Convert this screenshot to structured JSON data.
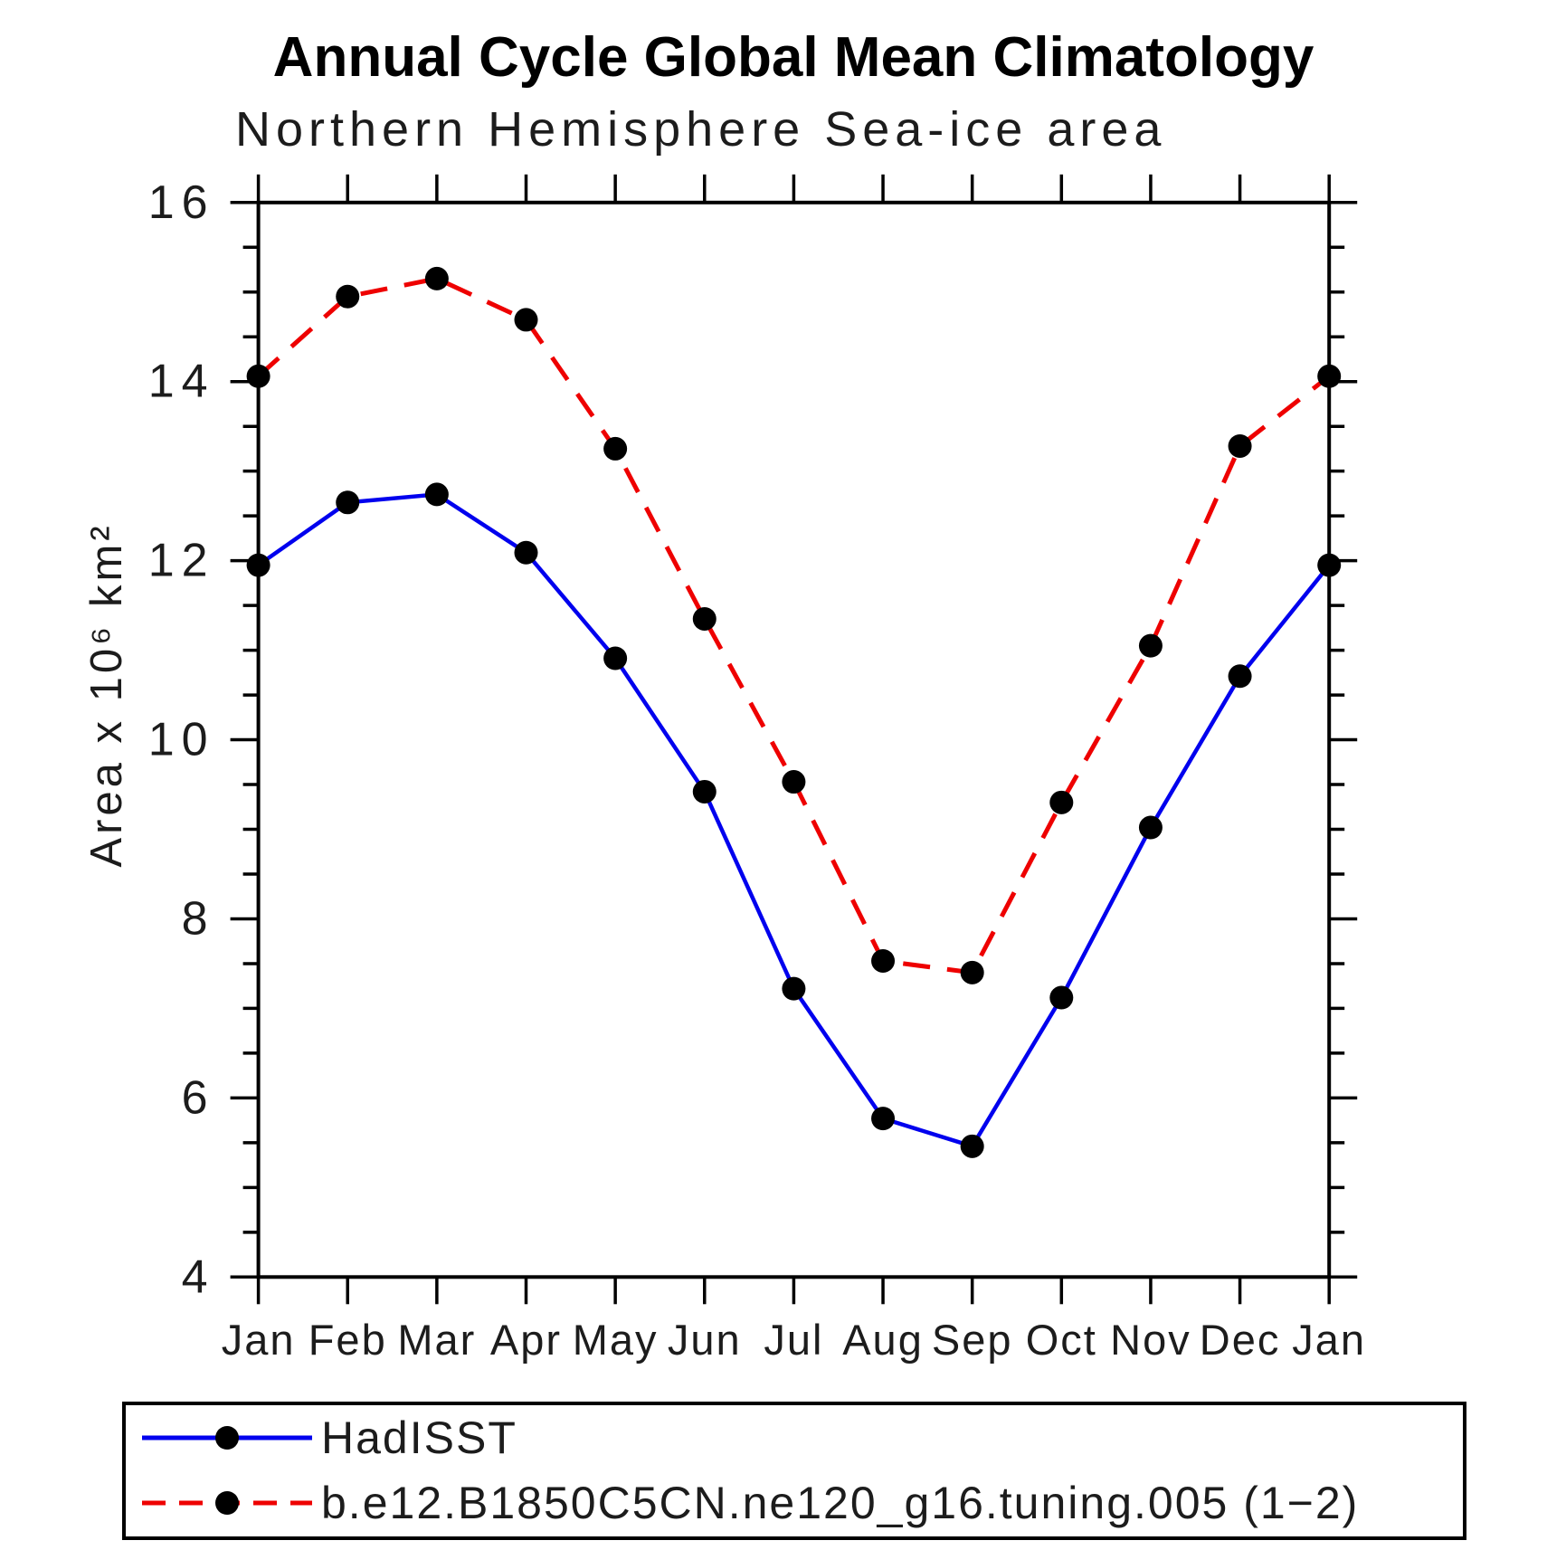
{
  "title": "Annual Cycle Global Mean Climatology",
  "subtitle": "Northern Hemisphere Sea-ice area",
  "y_axis": {
    "label": "Area x 10⁶ km²",
    "tick_labels": [
      "16",
      "14",
      "12",
      "10",
      "8",
      "6",
      "4"
    ]
  },
  "x_axis": {
    "tick_labels": [
      "Jan",
      "Feb",
      "Mar",
      "Apr",
      "May",
      "Jun",
      "Jul",
      "Aug",
      "Sep",
      "Oct",
      "Nov",
      "Dec",
      "Jan"
    ]
  },
  "legend": {
    "entries": [
      {
        "label": "HadISST",
        "color": "#0000ee",
        "line_style": "solid",
        "marker": "filled-circle"
      },
      {
        "label": "b.e12.B1850C5CN.ne120_g16.tuning.005 (1−2)",
        "color": "#ee0000",
        "line_style": "dashed",
        "marker": "filled-circle"
      }
    ]
  },
  "colors": {
    "hadisst_line": "#0000ee",
    "model_line": "#ee0000",
    "marker": "#000000",
    "axis": "#000000",
    "text": "#1c1c1c"
  },
  "chart_data": {
    "type": "line",
    "title": "Annual Cycle Global Mean Climatology",
    "subtitle": "Northern Hemisphere Sea-ice area",
    "ylabel": "Area x 10⁶ km²",
    "xlabel": "",
    "categories": [
      "Jan",
      "Feb",
      "Mar",
      "Apr",
      "May",
      "Jun",
      "Jul",
      "Aug",
      "Sep",
      "Oct",
      "Nov",
      "Dec",
      "Jan"
    ],
    "series": [
      {
        "name": "HadISST",
        "color": "#0000ee",
        "line_style": "solid",
        "marker": "filled-circle",
        "values": [
          11.95,
          12.65,
          12.74,
          12.09,
          10.91,
          9.42,
          7.22,
          5.77,
          5.46,
          7.12,
          9.02,
          10.71,
          11.95
        ]
      },
      {
        "name": "b.e12.B1850C5CN.ne120_g16.tuning.005 (1−2)",
        "color": "#ee0000",
        "line_style": "dashed",
        "marker": "filled-circle",
        "values": [
          14.06,
          14.95,
          15.15,
          14.69,
          13.25,
          11.35,
          9.53,
          7.53,
          7.4,
          9.3,
          11.05,
          13.28,
          14.06
        ]
      }
    ],
    "ylim": [
      4,
      16
    ],
    "y_major_step": 2,
    "y_minor_step": 0.5,
    "grid": false,
    "legend_position": "bottom-left-box"
  }
}
